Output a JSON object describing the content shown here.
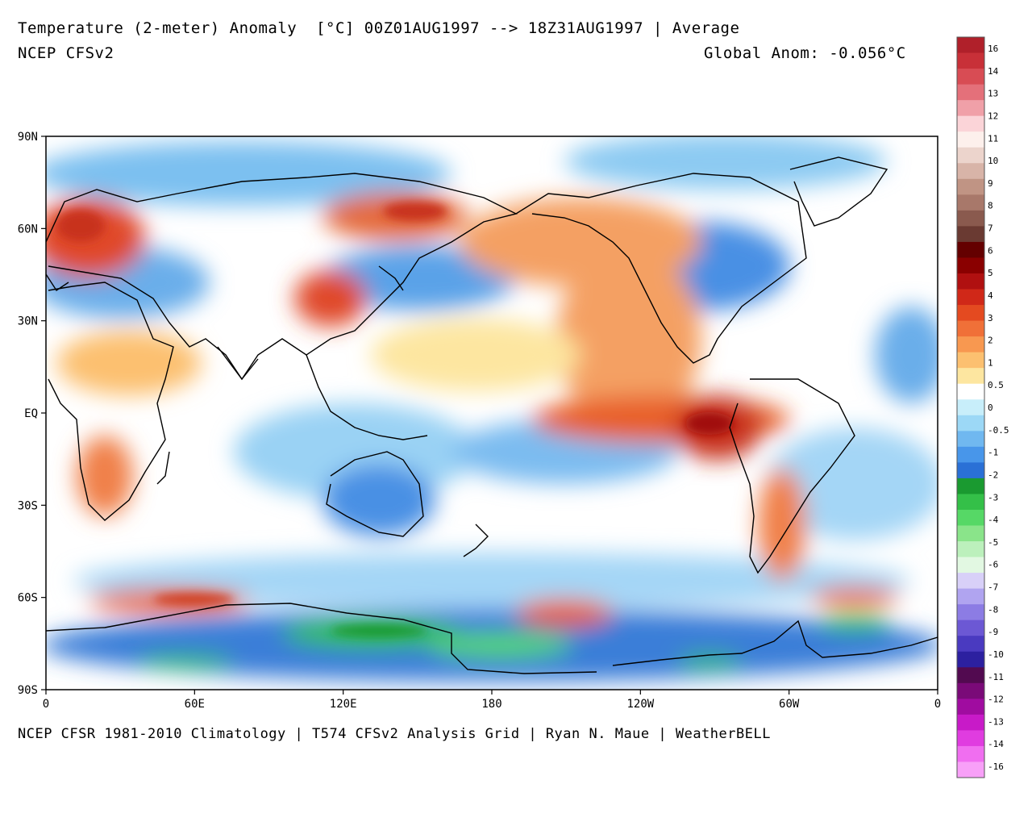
{
  "header": {
    "title": "Temperature (2-meter) Anomaly  [°C] 00Z01AUG1997 --> 18Z31AUG1997 | Average",
    "model": "NCEP CFSv2",
    "global_anom": "Global Anom: -0.056°C"
  },
  "footer": "NCEP CFSR 1981-2010 Climatology | T574 CFSv2 Analysis Grid | Ryan N. Maue | WeatherBELL",
  "axes": {
    "lat_labels": [
      "90N",
      "60N",
      "30N",
      "EQ",
      "30S",
      "60S",
      "90S"
    ],
    "lon_labels": [
      "0",
      "60E",
      "120E",
      "180",
      "120W",
      "60W",
      "0"
    ]
  },
  "colorbar": {
    "labels": [
      "16",
      "14",
      "13",
      "12",
      "11",
      "10",
      "9",
      "8",
      "7",
      "6",
      "5",
      "4",
      "3",
      "2",
      "1",
      "0.5",
      "0",
      "-0.5",
      "-1",
      "-2",
      "-3",
      "-4",
      "-5",
      "-6",
      "-7",
      "-8",
      "-9",
      "-10",
      "-11",
      "-12",
      "-13",
      "-14",
      "-16"
    ],
    "colors": [
      "#b0202a",
      "#c83038",
      "#d84c54",
      "#e4707a",
      "#f0a0a8",
      "#fbd4d8",
      "#fdf0ec",
      "#ecd4cc",
      "#d8b4a8",
      "#c09484",
      "#a8786a",
      "#8a5a4e",
      "#6a3a32",
      "#640000",
      "#8a0000",
      "#b01010",
      "#d02818",
      "#e44a20",
      "#f07038",
      "#f89850",
      "#fcc070",
      "#fde6a0",
      "#ffffff",
      "#c8eefa",
      "#9cd8f6",
      "#70b8f0",
      "#4896ea",
      "#2a70d6",
      "#1a9a30",
      "#34c048",
      "#56d866",
      "#8ae48a",
      "#bcf0bc",
      "#e2f8e2",
      "#d8d0f8",
      "#b0a4f0",
      "#8c7ce4",
      "#6c58d4",
      "#4a3ac0",
      "#2c20a0",
      "#520a50",
      "#7a0a78",
      "#a00ca0",
      "#c81ac8",
      "#e03ce0",
      "#f06ef0",
      "#f8a0f8"
    ],
    "warm_hex": "#e8602c",
    "cool_hex": "#3a82e0",
    "green_hex": "#2faa3c"
  }
}
